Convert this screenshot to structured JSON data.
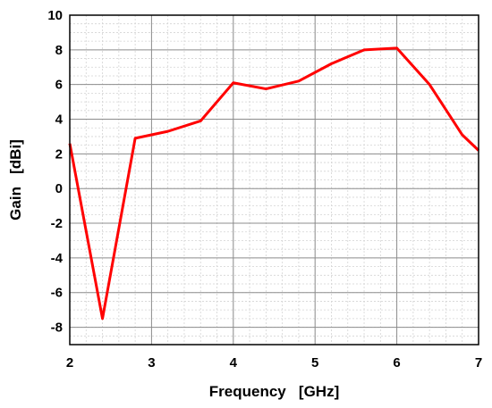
{
  "chart_data": {
    "type": "line",
    "xlabel": "Frequency   [GHz]",
    "ylabel": "Gain   [dBi]",
    "xlim": [
      2,
      7
    ],
    "ylim": [
      -9,
      10
    ],
    "xticks": [
      2,
      3,
      4,
      5,
      6,
      7
    ],
    "yticks": [
      -8,
      -6,
      -4,
      -2,
      0,
      2,
      4,
      6,
      8,
      10
    ],
    "grid": true,
    "minor_grid": true,
    "series": [
      {
        "color": "#ff0000",
        "x": [
          2.0,
          2.4,
          2.8,
          3.2,
          3.6,
          4.0,
          4.4,
          4.8,
          5.2,
          5.6,
          6.0,
          6.4,
          6.8,
          7.0
        ],
        "y": [
          2.6,
          -7.5,
          2.9,
          3.3,
          3.9,
          6.1,
          5.75,
          6.2,
          7.2,
          8.0,
          8.1,
          6.0,
          3.1,
          2.2
        ]
      }
    ]
  }
}
